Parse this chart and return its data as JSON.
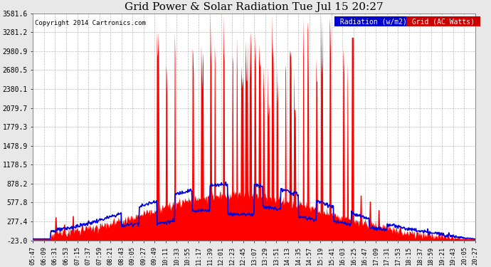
{
  "title": "Grid Power & Solar Radiation Tue Jul 15 20:27",
  "copyright": "Copyright 2014 Cartronics.com",
  "yticks": [
    3581.6,
    3281.2,
    2980.9,
    2680.5,
    2380.1,
    2079.7,
    1779.3,
    1478.9,
    1178.5,
    878.2,
    577.8,
    277.4,
    -23.0
  ],
  "ymin": -23.0,
  "ymax": 3581.6,
  "xtick_labels": [
    "05:47",
    "06:09",
    "06:31",
    "06:53",
    "07:15",
    "07:37",
    "07:59",
    "08:21",
    "08:43",
    "09:05",
    "09:27",
    "09:49",
    "10:11",
    "10:33",
    "10:55",
    "11:17",
    "11:39",
    "12:01",
    "12:23",
    "12:45",
    "13:07",
    "13:29",
    "13:51",
    "14:13",
    "14:35",
    "14:57",
    "15:19",
    "15:41",
    "16:03",
    "16:25",
    "16:47",
    "17:09",
    "17:31",
    "17:53",
    "18:15",
    "18:37",
    "18:59",
    "19:21",
    "19:43",
    "20:05",
    "20:27"
  ],
  "bg_color": "#e8e8e8",
  "plot_bg": "#ffffff",
  "grid_color": "#aaaaaa",
  "radiation_color": "#0000dd",
  "grid_power_color": "#ff0000",
  "legend_radiation_bg": "#0000cc",
  "legend_grid_bg": "#cc0000",
  "legend_radiation_text": "Radiation (w/m2)",
  "legend_grid_text": "Grid (AC Watts)"
}
